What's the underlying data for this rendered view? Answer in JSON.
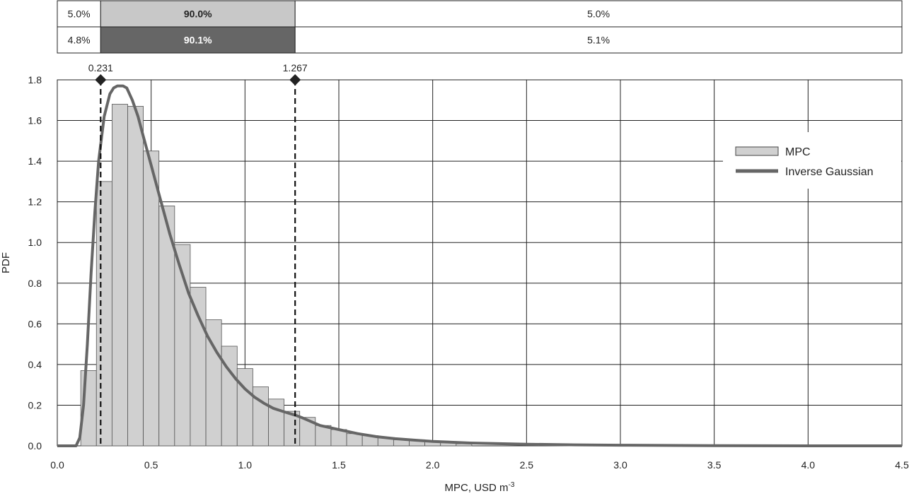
{
  "probability_bar": {
    "rows": [
      {
        "name": "mpc",
        "cells": [
          "5.0%",
          "90.0%",
          "5.0%"
        ],
        "middle_color": "#c8c8c8",
        "middle_text_color": "#222222"
      },
      {
        "name": "inverse-gaussian",
        "cells": [
          "4.8%",
          "90.1%",
          "5.1%"
        ],
        "middle_color": "#666666",
        "middle_text_color": "#ffffff"
      }
    ],
    "bounds": [
      0.231,
      1.267
    ]
  },
  "chart_data": {
    "type": "bar",
    "title": "",
    "xlabel": "MPC, USD m",
    "xlabel_superscript": "-3",
    "ylabel": "PDF",
    "xlim": [
      0.0,
      4.5
    ],
    "ylim": [
      0.0,
      1.8
    ],
    "x_ticks": [
      "0.0",
      "0.5",
      "1.0",
      "1.5",
      "2.0",
      "2.5",
      "3.0",
      "3.5",
      "4.0",
      "4.5"
    ],
    "y_ticks": [
      "0.0",
      "0.2",
      "0.4",
      "0.6",
      "0.8",
      "1.0",
      "1.2",
      "1.4",
      "1.6",
      "1.8"
    ],
    "grid": true,
    "legend_position": "right",
    "bin_width": 0.0833,
    "histogram": {
      "name": "MPC",
      "color": "#d0d0d0",
      "bin_starts": [
        0.125,
        0.2083,
        0.2917,
        0.375,
        0.4583,
        0.5417,
        0.625,
        0.7083,
        0.7917,
        0.875,
        0.9583,
        1.0417,
        1.125,
        1.2083,
        1.2917,
        1.375,
        1.4583,
        1.5417,
        1.625,
        1.7083,
        1.7917,
        1.875,
        1.9583,
        2.0417,
        2.125
      ],
      "values": [
        0.37,
        1.3,
        1.68,
        1.67,
        1.45,
        1.18,
        0.99,
        0.78,
        0.62,
        0.49,
        0.38,
        0.29,
        0.23,
        0.17,
        0.14,
        0.1,
        0.08,
        0.06,
        0.05,
        0.04,
        0.03,
        0.03,
        0.02,
        0.02,
        0.01
      ]
    },
    "curve": {
      "name": "Inverse Gaussian",
      "color": "#666666",
      "x": [
        0.0,
        0.1,
        0.12,
        0.14,
        0.16,
        0.18,
        0.2,
        0.22,
        0.25,
        0.28,
        0.3,
        0.32,
        0.35,
        0.37,
        0.4,
        0.43,
        0.45,
        0.5,
        0.55,
        0.6,
        0.65,
        0.7,
        0.75,
        0.8,
        0.85,
        0.9,
        0.95,
        1.0,
        1.05,
        1.1,
        1.15,
        1.2,
        1.27,
        1.3,
        1.4,
        1.5,
        1.6,
        1.7,
        1.8,
        1.9,
        2.0,
        2.2,
        2.5,
        2.76,
        3.0,
        3.5,
        4.0,
        4.5
      ],
      "y": [
        0.0,
        0.0,
        0.04,
        0.2,
        0.5,
        0.85,
        1.15,
        1.4,
        1.62,
        1.73,
        1.76,
        1.77,
        1.77,
        1.76,
        1.7,
        1.62,
        1.55,
        1.38,
        1.21,
        1.04,
        0.89,
        0.75,
        0.64,
        0.54,
        0.46,
        0.39,
        0.33,
        0.28,
        0.24,
        0.21,
        0.185,
        0.17,
        0.15,
        0.14,
        0.1,
        0.08,
        0.06,
        0.045,
        0.035,
        0.028,
        0.022,
        0.014,
        0.008,
        0.005,
        0.003,
        0.001,
        0.0,
        0.0
      ]
    },
    "vlines": [
      {
        "x": 0.231,
        "label": "0.231"
      },
      {
        "x": 1.267,
        "label": "1.267"
      }
    ]
  }
}
